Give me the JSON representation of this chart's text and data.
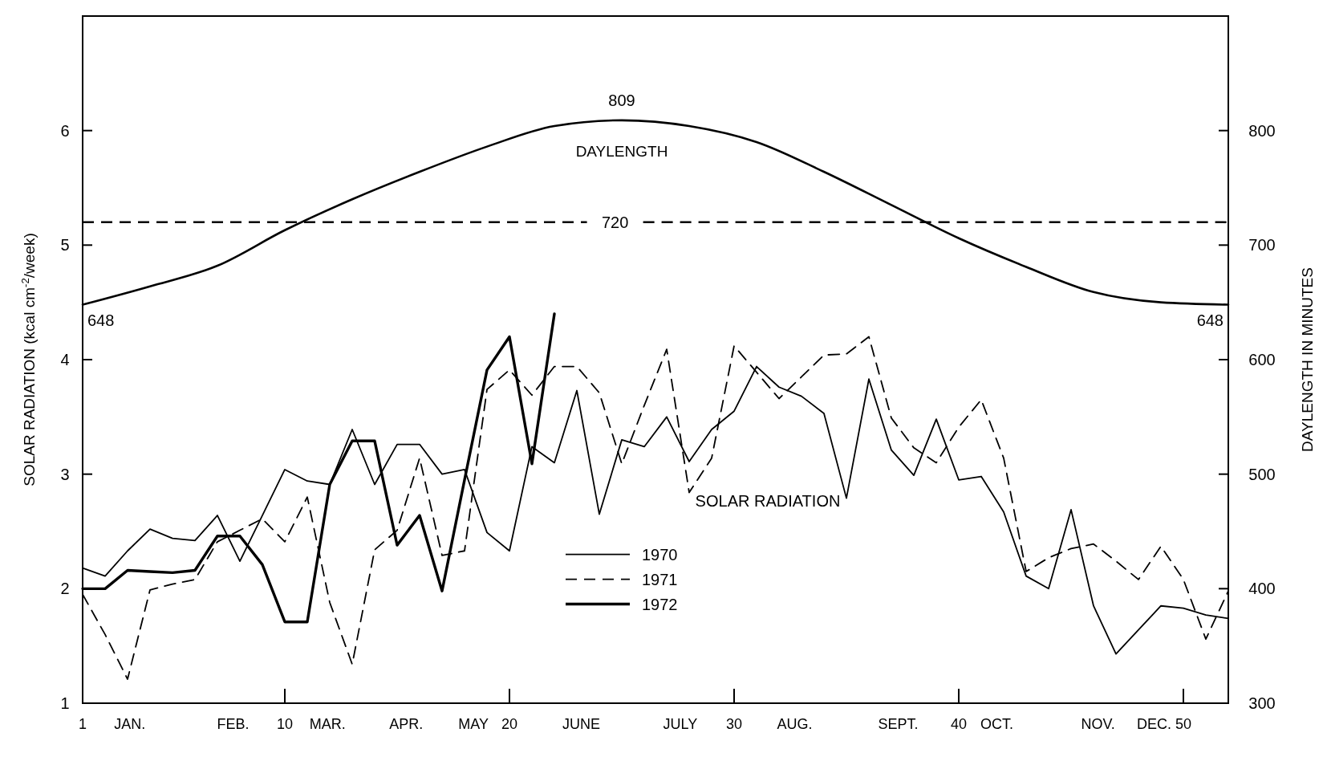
{
  "chart_data": {
    "type": "line",
    "xlabel": null,
    "ylabel": "SOLAR RADIATION (kcal cm$^{-2}$/week)",
    "y2label": "DAYLENGTH IN MINUTES",
    "xlim": [
      1,
      52
    ],
    "xticks": [
      1,
      10,
      20,
      30,
      40,
      50,
      {
        "value": 3.1,
        "label": "JAN."
      },
      {
        "value": 7.7,
        "label": "FEB."
      },
      {
        "value": 11.9,
        "label": "MAR."
      },
      {
        "value": 15.4,
        "label": "APR."
      },
      {
        "value": 18.4,
        "label": "MAY"
      },
      {
        "value": 23.2,
        "label": "JUNE"
      },
      {
        "value": 27.6,
        "label": "JULY"
      },
      {
        "value": 32.7,
        "label": "AUG."
      },
      {
        "value": 37.3,
        "label": "SEPT."
      },
      {
        "value": 41.7,
        "label": "OCT."
      },
      {
        "value": 46.2,
        "label": "NOV."
      },
      {
        "value": 48.7,
        "label": "DEC."
      }
    ],
    "ylim": [
      1,
      7
    ],
    "yticks": [
      1,
      2,
      3,
      4,
      5,
      6
    ],
    "y2lim": [
      300,
      900
    ],
    "y2ticks": [
      300,
      400,
      500,
      600,
      700,
      800
    ],
    "x": [
      1,
      2,
      3,
      4,
      5,
      6,
      7,
      8,
      9,
      10,
      11,
      12,
      13,
      14,
      15,
      16,
      17,
      18,
      19,
      20,
      21,
      22,
      23,
      24,
      25,
      26,
      27,
      28,
      29,
      30,
      31,
      32,
      33,
      34,
      35,
      36,
      37,
      38,
      39,
      40,
      41,
      42,
      43,
      44,
      45,
      46,
      47,
      48,
      49,
      50,
      51,
      52
    ],
    "series": [
      {
        "name": "1970",
        "color": "#000000",
        "line_style": "solid",
        "values": [
          2.18,
          2.11,
          2.33,
          2.52,
          2.44,
          2.42,
          2.64,
          2.24,
          2.64,
          3.04,
          2.94,
          2.91,
          3.39,
          2.91,
          3.26,
          3.26,
          3.0,
          3.04,
          2.49,
          2.33,
          3.24,
          3.1,
          3.73,
          2.65,
          3.3,
          3.24,
          3.5,
          3.11,
          3.39,
          3.55,
          3.94,
          3.76,
          3.68,
          3.53,
          2.79,
          3.83,
          3.21,
          2.99,
          3.48,
          2.95,
          2.98,
          2.67,
          2.11,
          2.0,
          2.69,
          1.85,
          1.43,
          1.64,
          1.85,
          1.83,
          1.77,
          1.74
        ]
      },
      {
        "name": "1971",
        "color": "#000000",
        "line_style": "dashed",
        "values": [
          1.95,
          1.6,
          1.21,
          1.99,
          2.04,
          2.08,
          2.41,
          2.51,
          2.61,
          2.41,
          2.8,
          1.88,
          1.34,
          2.34,
          2.51,
          3.14,
          2.29,
          2.33,
          3.74,
          3.91,
          3.69,
          3.94,
          3.94,
          3.71,
          3.09,
          3.6,
          4.09,
          2.84,
          3.14,
          4.12,
          3.89,
          3.66,
          3.85,
          4.04,
          4.05,
          4.2,
          3.49,
          3.23,
          3.1,
          3.41,
          3.65,
          3.14,
          2.15,
          2.27,
          2.35,
          2.39,
          2.24,
          2.08,
          2.37,
          2.08,
          1.56,
          1.98
        ]
      },
      {
        "name": "1972",
        "color": "#000000",
        "line_style": "solid",
        "values": [
          2.0,
          2.0,
          2.16,
          2.15,
          2.14,
          2.16,
          2.46,
          2.46,
          2.21,
          1.71,
          1.71,
          2.91,
          3.29,
          3.29,
          2.38,
          2.64,
          1.98,
          2.95,
          3.91,
          4.2,
          3.09,
          4.4,
          null,
          null,
          null,
          null,
          null,
          null,
          null,
          null,
          null,
          null,
          null,
          null,
          null,
          null,
          null,
          null,
          null,
          null,
          null,
          null,
          null,
          null,
          null,
          null,
          null,
          null,
          null,
          null,
          null,
          null
        ]
      },
      {
        "name": "DAYLENGTH",
        "color": "#000000",
        "axis": "y2",
        "line_style": "solid",
        "x": [
          1,
          4,
          7,
          10,
          13,
          16,
          19,
          22,
          25,
          28,
          31,
          34,
          37,
          40,
          43,
          46,
          49,
          52
        ],
        "values": [
          648,
          664,
          682,
          713,
          740,
          764,
          786,
          804,
          809,
          804,
          790,
          764,
          735,
          706,
          681,
          659,
          650,
          648
        ]
      }
    ],
    "ref_lines": [
      {
        "axis": "y2",
        "value": 720,
        "label": "720",
        "color": "#000000",
        "line_style": "dashed"
      }
    ],
    "annotations": [
      "SOLAR RADIATION",
      {
        "text": "809",
        "x": 25,
        "y": 6.09
      },
      {
        "text": "648",
        "x": 1,
        "y": 4.48
      },
      {
        "text": "648",
        "x": 52,
        "y": 4.48
      }
    ],
    "legend": "bottom",
    "grid": false,
    "marker": "none"
  }
}
